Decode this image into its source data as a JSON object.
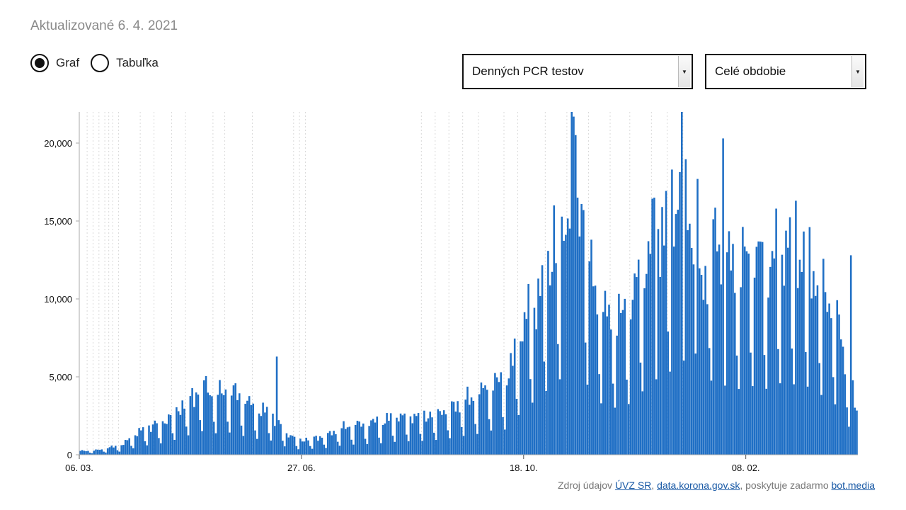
{
  "updated_label": "Aktualizované 6. 4. 2021",
  "view_toggle": {
    "options": [
      "Graf",
      "Tabuľka"
    ],
    "selected": "Graf"
  },
  "metric_select": {
    "value": "Denných PCR testov"
  },
  "period_select": {
    "value": "Celé obdobie"
  },
  "source": {
    "prefix": "Zdroj údajov",
    "link1": "ÚVZ SR",
    "sep1": ",",
    "link2": "data.korona.gov.sk",
    "middle": ", poskytuje zadarmo",
    "link3": "bot.media"
  },
  "colors": {
    "bar": "#1f6fc5",
    "gridline": "#d9d9d9",
    "axis": "#aaaaaa"
  },
  "chart_data": {
    "type": "bar",
    "title": "Denných PCR testov",
    "xlabel": "",
    "ylabel": "",
    "x_range": [
      "2020-03-06",
      "2021-04-05"
    ],
    "ylim": [
      0,
      22000
    ],
    "yticks": [
      0,
      5000,
      10000,
      15000,
      20000
    ],
    "ytick_labels": [
      "0",
      "5,000",
      "10,000",
      "15,000",
      "20,000"
    ],
    "xtick_labels": [
      "06. 03.",
      "27. 06.",
      "18. 10.",
      "08. 02."
    ],
    "xtick_day_index": [
      0,
      113,
      226,
      339
    ],
    "series": [
      {
        "name": "Denných PCR testov",
        "weekly_profile": [
          [
            0,
            300
          ],
          [
            7,
            300
          ],
          [
            14,
            500
          ],
          [
            21,
            700
          ],
          [
            28,
            1500
          ],
          [
            35,
            2100
          ],
          [
            42,
            2500
          ],
          [
            49,
            3300
          ],
          [
            56,
            4300
          ],
          [
            63,
            5200
          ],
          [
            70,
            4500
          ],
          [
            77,
            4800
          ],
          [
            84,
            3900
          ],
          [
            91,
            3300
          ],
          [
            98,
            3000
          ],
          [
            105,
            1600
          ],
          [
            112,
            1100
          ],
          [
            119,
            1300
          ],
          [
            126,
            1500
          ],
          [
            133,
            2000
          ],
          [
            140,
            2200
          ],
          [
            147,
            2300
          ],
          [
            154,
            2500
          ],
          [
            161,
            2800
          ],
          [
            168,
            2900
          ],
          [
            175,
            3000
          ],
          [
            182,
            3200
          ],
          [
            189,
            3600
          ],
          [
            196,
            4100
          ],
          [
            203,
            4500
          ],
          [
            210,
            5300
          ],
          [
            217,
            5400
          ],
          [
            224,
            9000
          ],
          [
            231,
            11500
          ],
          [
            238,
            14000
          ],
          [
            245,
            16500
          ],
          [
            252,
            21000
          ],
          [
            259,
            14000
          ],
          [
            266,
            10500
          ],
          [
            273,
            10000
          ],
          [
            280,
            11000
          ],
          [
            287,
            14000
          ],
          [
            294,
            16500
          ],
          [
            301,
            18000
          ],
          [
            308,
            20500
          ],
          [
            315,
            12000
          ],
          [
            322,
            16500
          ],
          [
            329,
            14500
          ],
          [
            336,
            14000
          ],
          [
            343,
            14800
          ],
          [
            350,
            14000
          ],
          [
            357,
            15500
          ],
          [
            364,
            15000
          ],
          [
            371,
            14500
          ],
          [
            378,
            12500
          ],
          [
            385,
            10500
          ],
          [
            395,
            3000
          ]
        ],
        "spikes": [
          {
            "day": 100,
            "value": 6300
          },
          {
            "day": 241,
            "value": 16000
          },
          {
            "day": 250,
            "value": 22000
          },
          {
            "day": 251,
            "value": 21700
          },
          {
            "day": 253,
            "value": 16500
          },
          {
            "day": 256,
            "value": 15700
          },
          {
            "day": 292,
            "value": 16500
          },
          {
            "day": 301,
            "value": 18300
          },
          {
            "day": 306,
            "value": 22000
          },
          {
            "day": 314,
            "value": 17700
          },
          {
            "day": 327,
            "value": 20300
          },
          {
            "day": 364,
            "value": 16300
          },
          {
            "day": 392,
            "value": 12800
          }
        ],
        "weekend_drop_days": [
          5,
          6
        ]
      }
    ],
    "notable_dates_day_index": [
      4,
      7,
      10,
      13,
      15,
      17,
      20,
      31,
      38,
      47,
      54,
      68,
      74,
      88,
      109,
      112,
      115,
      174,
      181,
      188,
      195,
      203,
      216,
      223,
      237,
      248,
      259,
      270,
      280,
      291,
      299,
      307
    ]
  }
}
